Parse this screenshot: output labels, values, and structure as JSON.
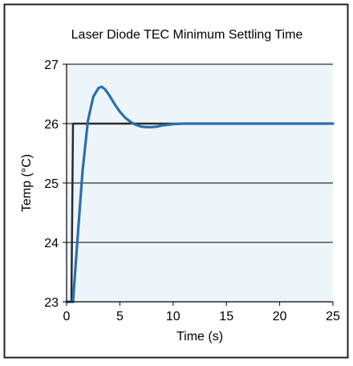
{
  "chart_data": {
    "type": "line",
    "title": "Laser Diode TEC Minimum Settling Time",
    "xlabel": "Time (s)",
    "ylabel": "Temp (°C)",
    "xlim": [
      0,
      25
    ],
    "ylim": [
      23,
      27
    ],
    "xticks": [
      0,
      5,
      10,
      15,
      20,
      25
    ],
    "yticks": [
      23,
      24,
      25,
      26,
      27
    ],
    "grid": "horizontal",
    "plot_background": "#eef5fa",
    "series": [
      {
        "color": "#2b2b2b",
        "x": [
          0,
          0.45,
          0.6,
          1,
          5,
          10,
          15,
          20,
          25
        ],
        "y": [
          23,
          23,
          26,
          26,
          26,
          26,
          26,
          26,
          26
        ]
      },
      {
        "color": "#2a6fad",
        "x": [
          0,
          0.6,
          1.0,
          1.5,
          2.0,
          2.5,
          3.0,
          3.3,
          3.6,
          4.0,
          4.5,
          5.0,
          5.5,
          6.0,
          6.5,
          7.0,
          7.5,
          8.0,
          8.5,
          9.0,
          9.5,
          10.0,
          11.0,
          12.0,
          15.0,
          20.0,
          25.0
        ],
        "y": [
          23,
          23,
          24.0,
          25.2,
          26.05,
          26.45,
          26.6,
          26.62,
          26.58,
          26.48,
          26.33,
          26.2,
          26.1,
          26.03,
          25.98,
          25.95,
          25.94,
          25.94,
          25.95,
          25.97,
          25.98,
          25.99,
          26.0,
          26.0,
          26.0,
          26.0,
          26.0
        ]
      }
    ]
  }
}
